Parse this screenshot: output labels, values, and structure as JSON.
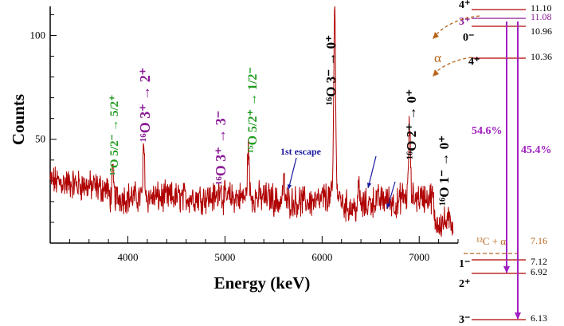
{
  "chart_data": {
    "type": "line",
    "xlabel": "Energy (keV)",
    "ylabel": "Counts",
    "xlim": [
      3200,
      7400
    ],
    "ylim": [
      0,
      114
    ],
    "x_ticks": [
      4000,
      5000,
      6000,
      7000
    ],
    "y_ticks": [
      50,
      100
    ],
    "grid": false,
    "series": [
      {
        "color": "#b00000",
        "baseline": 22,
        "peaks": [
          {
            "x": 3845,
            "y": 32
          },
          {
            "x": 4165,
            "y": 46
          },
          {
            "x": 4950,
            "y": 30
          },
          {
            "x": 5240,
            "y": 46
          },
          {
            "x": 5605,
            "y": 30
          },
          {
            "x": 6130,
            "y": 113
          },
          {
            "x": 6380,
            "y": 27
          },
          {
            "x": 6900,
            "y": 58
          },
          {
            "x": 7115,
            "y": 22
          }
        ]
      }
    ],
    "annotations": [
      {
        "id": "o17",
        "text": "¹⁷O 5/2⁻ → 5/2⁺",
        "color": "#1f9a1f"
      },
      {
        "id": "o16a",
        "text": "¹⁶O 3⁺ → 2⁺",
        "color": "#8a1a96"
      },
      {
        "id": "o16b",
        "text": "¹⁶O 3⁺ → 3⁻",
        "color": "#8a1a96"
      },
      {
        "id": "o15",
        "text": "¹⁵O 5/2⁺ → 1/2⁻",
        "color": "#1f9a1f"
      },
      {
        "id": "o16c",
        "text": "¹⁶O 3⁻ → 0⁺",
        "color": "#000000"
      },
      {
        "id": "o16d",
        "text": "¹⁶O 2⁺ → 0⁺",
        "color": "#000000"
      },
      {
        "id": "o16e",
        "text": "¹⁶O 1⁻ → 0⁺",
        "color": "#000000"
      },
      {
        "id": "escape",
        "text": "1st escape",
        "color": "#1a1aa0"
      }
    ]
  },
  "level_scheme": {
    "levels": [
      {
        "spin": "4⁺",
        "energy": "11.10",
        "color": "#000000"
      },
      {
        "spin": "3⁺",
        "energy": "11.08",
        "color": "#8a1a96"
      },
      {
        "spin": "0⁻",
        "energy": "10.96",
        "color": "#000000"
      },
      {
        "spin": "4⁺",
        "energy": "10.36",
        "color": "#000000"
      },
      {
        "spin": "¹²C + α",
        "energy": "7.16",
        "color": "#b8651d"
      },
      {
        "spin": "1⁻",
        "energy": "7.12",
        "color": "#000000"
      },
      {
        "spin": "2⁺",
        "energy": "6.92",
        "color": "#000000"
      },
      {
        "spin": "3⁻",
        "energy": "6.13",
        "color": "#000000"
      }
    ],
    "branch_left": "54.6%",
    "branch_right": "45.4%",
    "alpha_label": "α",
    "colors": {
      "transition": "#a020c0",
      "level_line": "#b00000",
      "alpha": "#b8651d"
    }
  }
}
